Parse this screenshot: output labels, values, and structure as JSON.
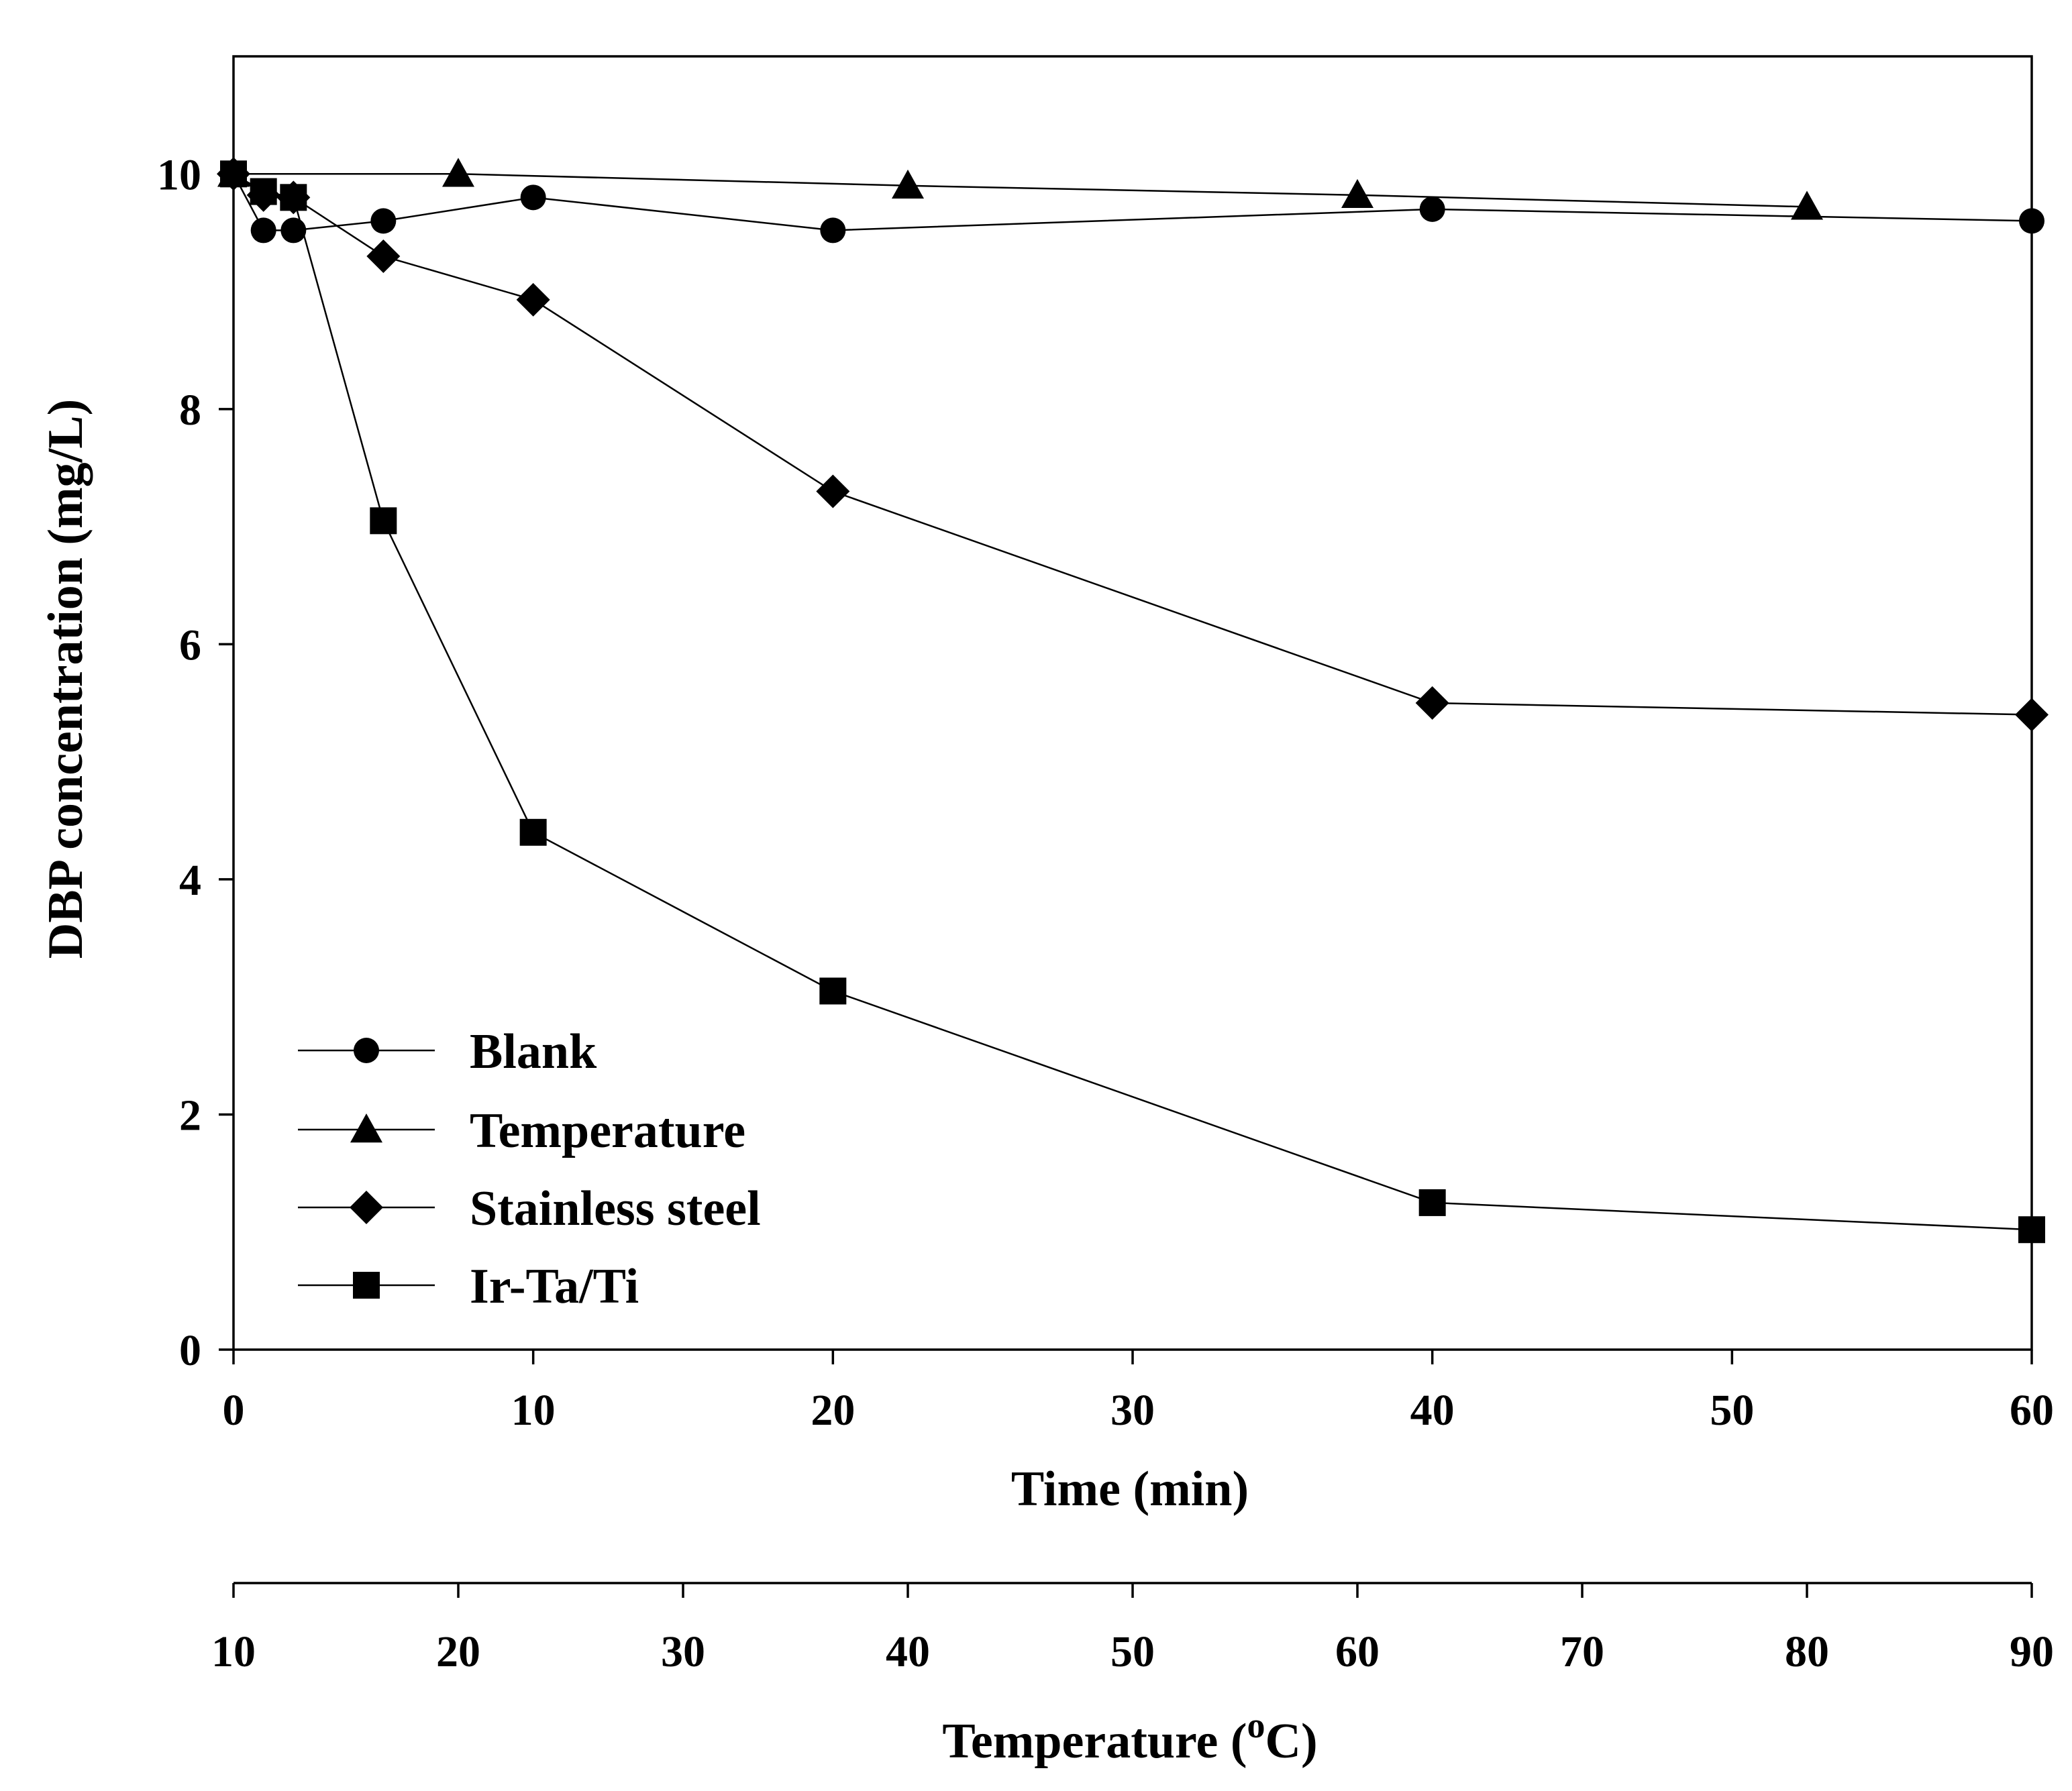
{
  "chart_data": {
    "type": "line",
    "title": "",
    "xlabel": "Time (min)",
    "ylabel": "DBP concentration (mg/L)",
    "x2label_main": "Temperature (",
    "x2label_sup": "o",
    "x2label_end": "C)",
    "xlim": [
      0,
      60
    ],
    "ylim": [
      0,
      11
    ],
    "x2lim": [
      10,
      90
    ],
    "xticks": [
      0,
      10,
      20,
      30,
      40,
      50,
      60
    ],
    "yticks": [
      0,
      2,
      4,
      6,
      8,
      10
    ],
    "x2ticks": [
      10,
      20,
      30,
      40,
      50,
      60,
      70,
      80,
      90
    ],
    "legend_position": "lower-left",
    "series": [
      {
        "name": "Blank",
        "marker": "circle",
        "axis": "time",
        "x": [
          0,
          1,
          2,
          5,
          10,
          20,
          40,
          60
        ],
        "y": [
          10,
          9.52,
          9.52,
          9.6,
          9.8,
          9.52,
          9.7,
          9.6
        ]
      },
      {
        "name": "Temperature",
        "marker": "triangle",
        "axis": "temperature",
        "x": [
          10,
          20,
          40,
          60,
          80
        ],
        "y": [
          10,
          10,
          9.9,
          9.82,
          9.72
        ]
      },
      {
        "name": "Stainless steel",
        "marker": "diamond",
        "axis": "time",
        "x": [
          0,
          1,
          2,
          5,
          10,
          20,
          40,
          60
        ],
        "y": [
          10,
          9.82,
          9.8,
          9.3,
          8.93,
          7.3,
          5.5,
          5.4
        ]
      },
      {
        "name": "Ir-Ta/Ti",
        "marker": "square",
        "axis": "time",
        "x": [
          0,
          1,
          2,
          5,
          10,
          20,
          40,
          60
        ],
        "y": [
          10,
          9.85,
          9.8,
          7.05,
          4.4,
          3.05,
          1.25,
          1.02
        ]
      }
    ]
  }
}
